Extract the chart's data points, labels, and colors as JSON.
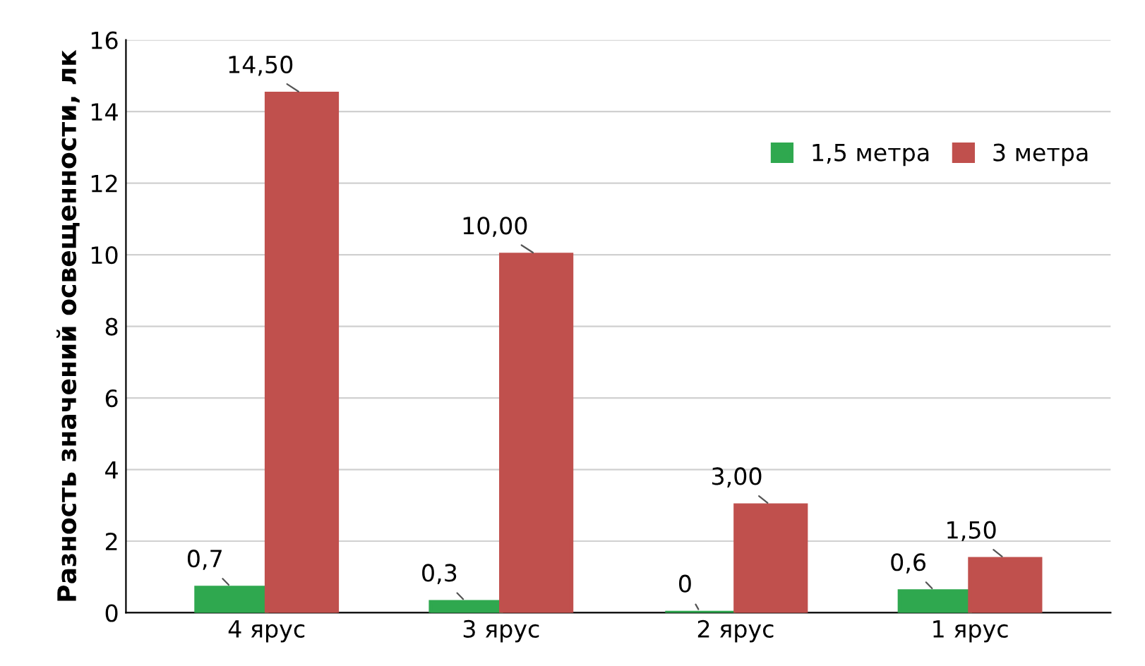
{
  "chart_data": {
    "type": "bar",
    "ylabel": "Разность значений освещенности, лк",
    "categories": [
      "4 ярус",
      "3 ярус",
      "2 ярус",
      "1 ярус"
    ],
    "series": [
      {
        "name": "1,5 метра",
        "color": "#2fa84f",
        "values": [
          0.7,
          0.3,
          0,
          0.6
        ],
        "value_labels": [
          "0,7",
          "0,3",
          "0",
          "0,6"
        ]
      },
      {
        "name": "3 метра",
        "color": "#c0504d",
        "values": [
          14.5,
          10,
          3,
          1.5
        ],
        "value_labels": [
          "14,50",
          "10,00",
          "3,00",
          "1,50"
        ]
      }
    ],
    "ylim": [
      0,
      16
    ],
    "yticks": [
      0,
      2,
      4,
      6,
      8,
      10,
      12,
      14,
      16
    ],
    "grid": "y",
    "legend": "right"
  }
}
